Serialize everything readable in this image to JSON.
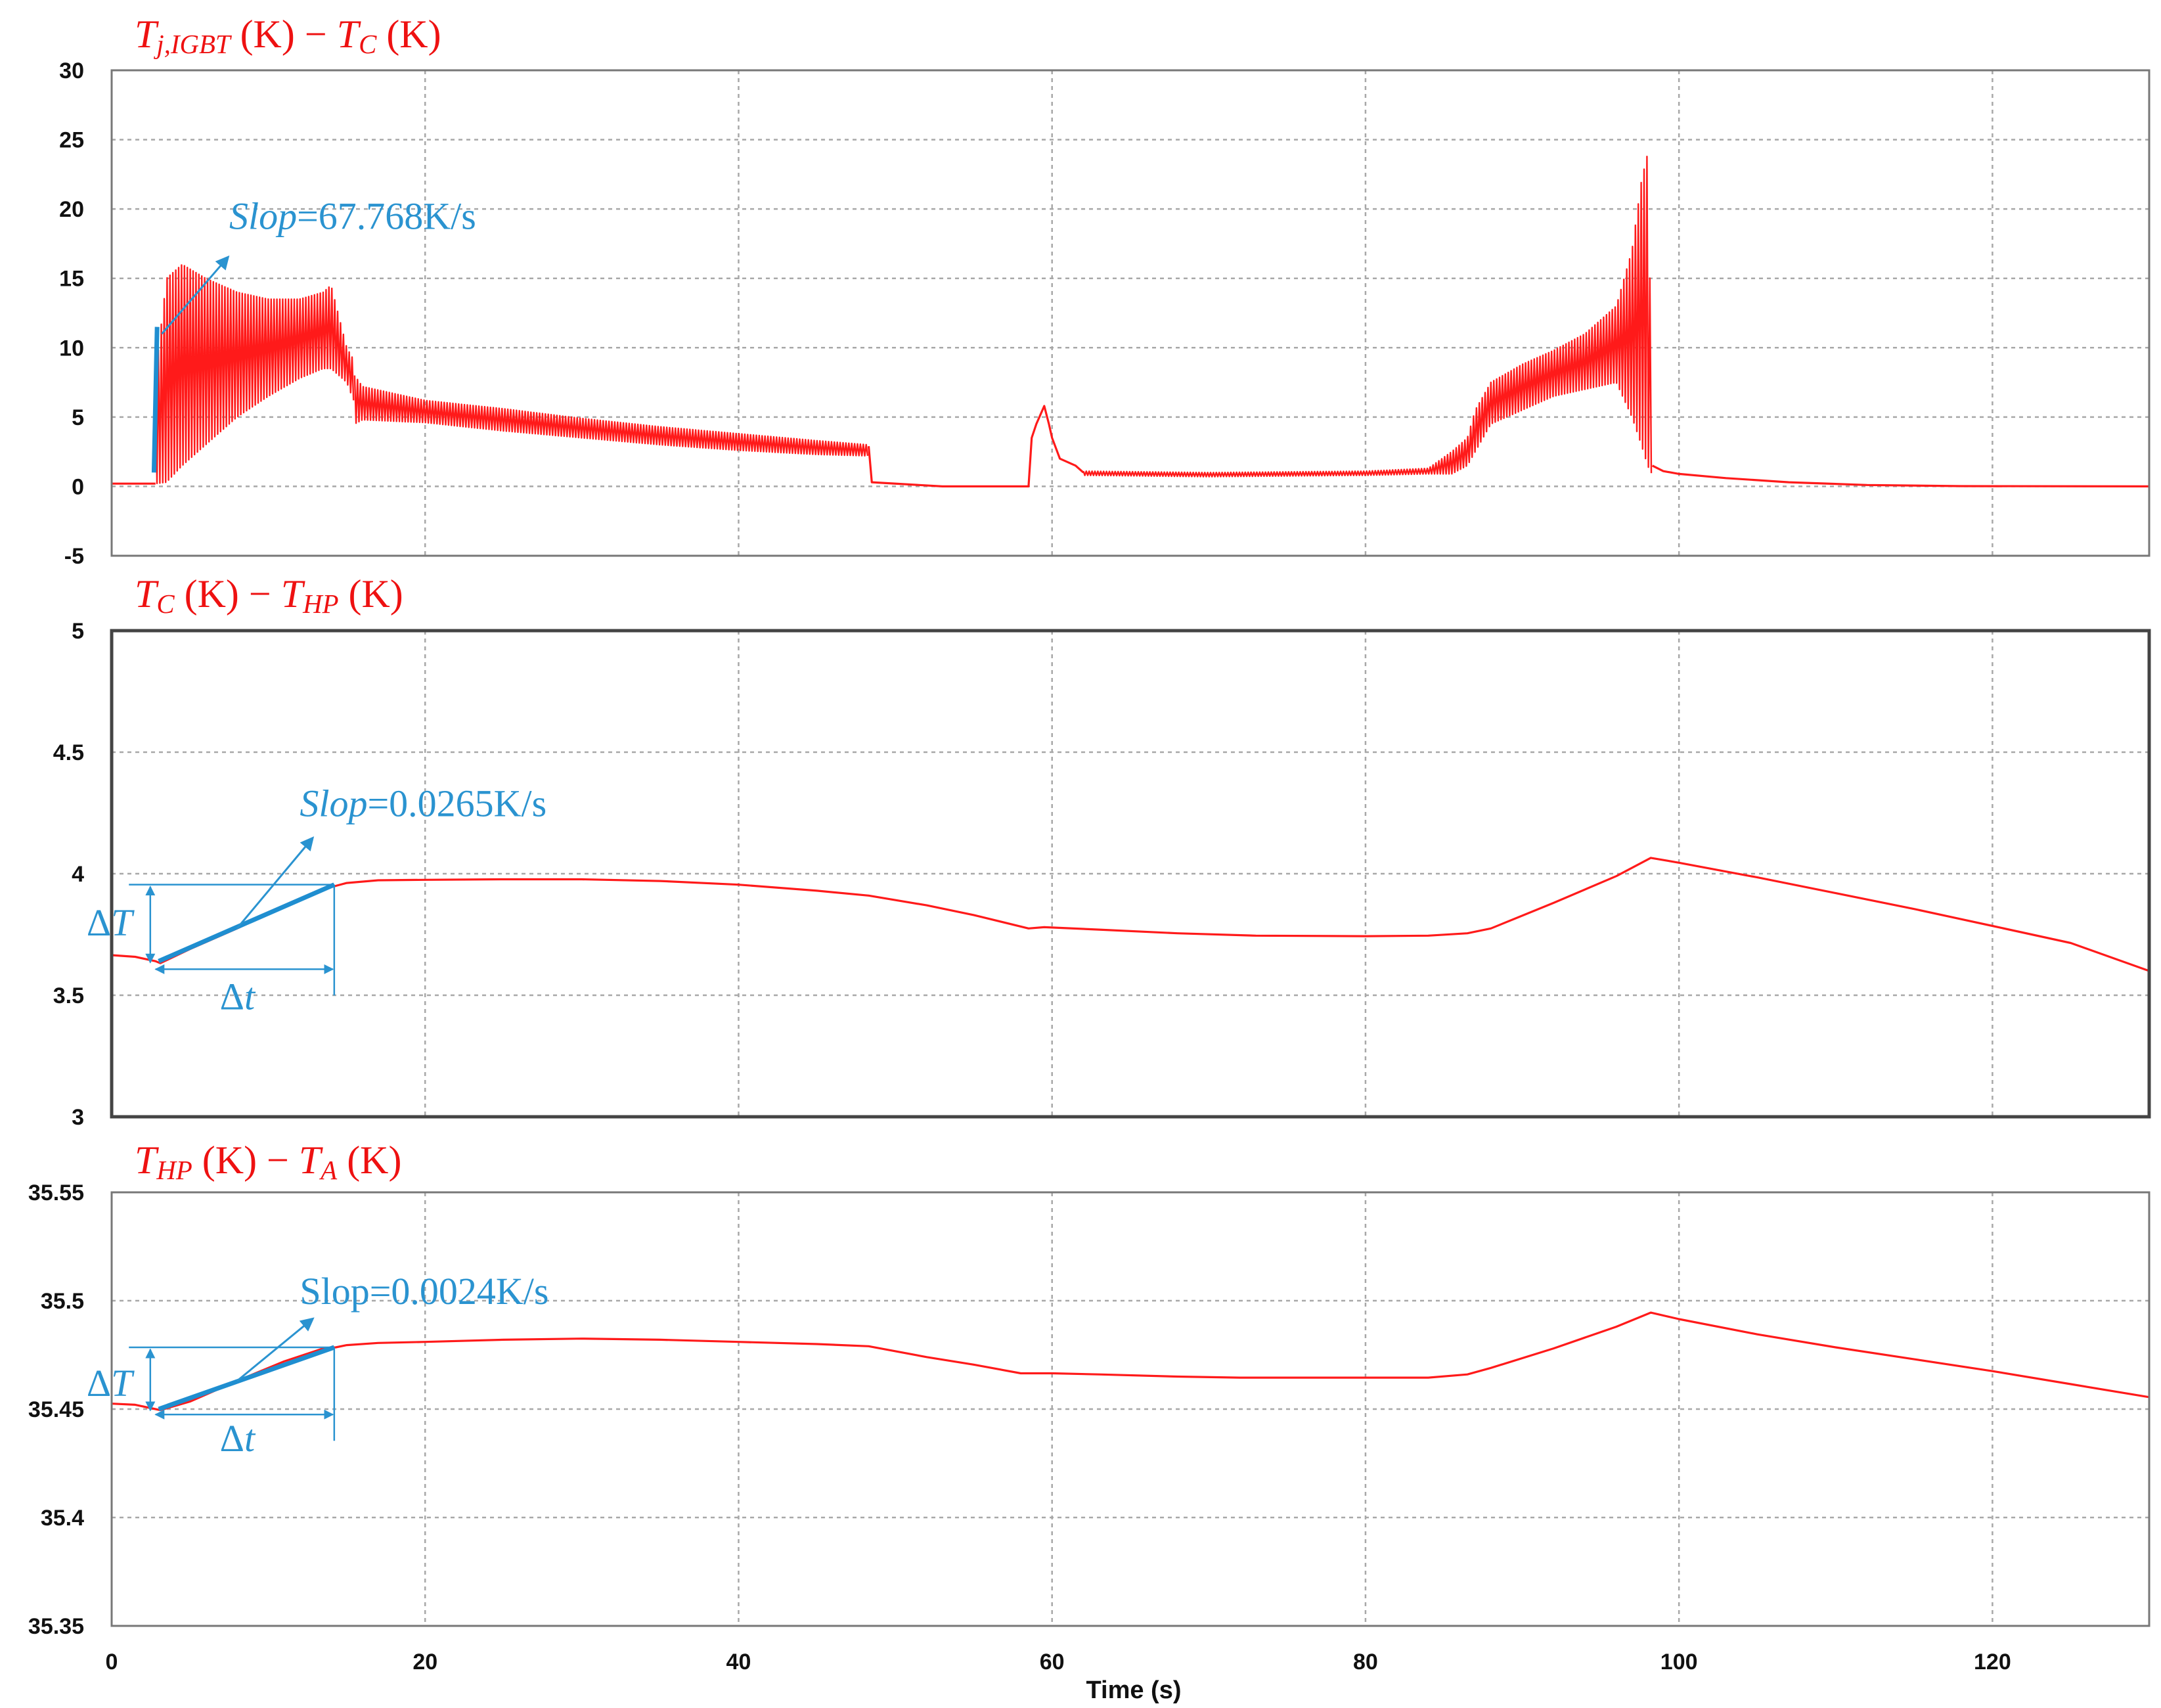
{
  "chart_data": [
    {
      "type": "line",
      "title_parts": [
        {
          "t": "T",
          "it": true
        },
        {
          "t": "j,IGBT",
          "sub": true,
          "it": true
        },
        {
          "t": " (K)  − "
        },
        {
          "t": "T",
          "it": true
        },
        {
          "t": "C",
          "sub": true,
          "it": true
        },
        {
          "t": " (K)"
        }
      ],
      "xlim": [
        0,
        130
      ],
      "ylim": [
        -5,
        30
      ],
      "yticks": [
        -5,
        0,
        5,
        10,
        15,
        20,
        25,
        30
      ],
      "ytick_labels": [
        "-5",
        "0",
        "5",
        "10",
        "15",
        "20",
        "25",
        "30"
      ],
      "frame_style": "normal",
      "series": [
        {
          "color": "#ff1a1a",
          "segments": [
            {
              "mode": "line",
              "points": [
                [
                  0,
                  0.2
                ],
                [
                  2.8,
                  0.2
                ],
                [
                  2.8,
                  0.2
                ]
              ]
            },
            {
              "mode": "band",
              "env": [
                [
                  2.8,
                  0.2,
                  8
                ],
                [
                  3.5,
                  0.3,
                  15
                ],
                [
                  4.5,
                  1.5,
                  16
                ],
                [
                  6,
                  3,
                  15
                ],
                [
                  8,
                  5,
                  14
                ],
                [
                  10,
                  6.5,
                  13.5
                ],
                [
                  12,
                  7.8,
                  13.5
                ],
                [
                  13.5,
                  8.5,
                  14
                ],
                [
                  14,
                  8.5,
                  14.5
                ],
                [
                  15,
                  7.5,
                  10
                ],
                [
                  15.5,
                  6,
                  9
                ]
              ]
            },
            {
              "mode": "band",
              "env": [
                [
                  15.5,
                  4.5,
                  8
                ],
                [
                  16,
                  4.8,
                  7.2
                ],
                [
                  20,
                  4.6,
                  6.2
                ],
                [
                  25,
                  4,
                  5.6
                ],
                [
                  30,
                  3.5,
                  4.9
                ],
                [
                  35,
                  3,
                  4.3
                ],
                [
                  40,
                  2.6,
                  3.8
                ],
                [
                  45,
                  2.3,
                  3.3
                ],
                [
                  48.3,
                  2.2,
                  3
                ]
              ]
            },
            {
              "mode": "line",
              "points": [
                [
                  48.3,
                  2.9
                ],
                [
                  48.5,
                  0.3
                ],
                [
                  53,
                  0
                ],
                [
                  58.5,
                  0
                ],
                [
                  58.7,
                  3.5
                ],
                [
                  59,
                  4.5
                ],
                [
                  59.5,
                  5.8
                ],
                [
                  59.8,
                  4.5
                ],
                [
                  60,
                  3.5
                ],
                [
                  60.5,
                  2
                ],
                [
                  61.5,
                  1.5
                ],
                [
                  62,
                  1
                ]
              ]
            },
            {
              "mode": "band",
              "env": [
                [
                  62,
                  0.8,
                  1.1
                ],
                [
                  70,
                  0.7,
                  1
                ],
                [
                  80,
                  0.8,
                  1.1
                ],
                [
                  84,
                  0.9,
                  1.3
                ],
                [
                  85.5,
                  0.9,
                  2.5
                ],
                [
                  86.5,
                  1.5,
                  3.5
                ],
                [
                  87,
                  2.5,
                  5.5
                ],
                [
                  88,
                  4.5,
                  7.5
                ],
                [
                  90,
                  5.5,
                  8.8
                ],
                [
                  92,
                  6.5,
                  9.8
                ],
                [
                  94,
                  7,
                  11
                ],
                [
                  96,
                  7.5,
                  13
                ],
                [
                  97,
                  5,
                  17
                ],
                [
                  97.6,
                  3,
                  22
                ],
                [
                  98,
                  1.5,
                  24
                ],
                [
                  98.3,
                  0.8,
                  5
                ]
              ]
            },
            {
              "mode": "line",
              "points": [
                [
                  98.3,
                  1.5
                ],
                [
                  99,
                  1.1
                ],
                [
                  100,
                  0.9
                ],
                [
                  103,
                  0.6
                ],
                [
                  107,
                  0.3
                ],
                [
                  112,
                  0.1
                ],
                [
                  118,
                  0.02
                ],
                [
                  130,
                  0
                ]
              ]
            }
          ]
        }
      ],
      "annotations": {
        "slope_label_parts": [
          {
            "t": "Slop",
            "it": true
          },
          {
            "t": "=67.768K/s"
          }
        ],
        "fit_line": [
          [
            2.7,
            1
          ],
          [
            2.9,
            11.5
          ]
        ],
        "arrow": [
          [
            3.2,
            11
          ],
          [
            7.4,
            16.5
          ]
        ],
        "label_pos": [
          7.5,
          19.5
        ]
      }
    },
    {
      "type": "line",
      "title_parts": [
        {
          "t": "T",
          "it": true
        },
        {
          "t": "C",
          "sub": true,
          "it": true
        },
        {
          "t": " (K)  − "
        },
        {
          "t": "T",
          "it": true
        },
        {
          "t": "HP",
          "sub": true,
          "it": true
        },
        {
          "t": " (K)"
        }
      ],
      "xlim": [
        0,
        130
      ],
      "ylim": [
        3,
        5
      ],
      "yticks": [
        3,
        3.5,
        4,
        4.5,
        5
      ],
      "ytick_labels": [
        "3",
        "3.5",
        "4",
        "4.5",
        "5"
      ],
      "frame_style": "bold",
      "series": [
        {
          "color": "#ff1a1a",
          "segments": [
            {
              "mode": "line",
              "points": [
                [
                  0,
                  3.665
                ],
                [
                  1.5,
                  3.658
                ],
                [
                  2.8,
                  3.64
                ],
                [
                  3.1,
                  3.632
                ],
                [
                  5,
                  3.69
                ],
                [
                  8,
                  3.775
                ],
                [
                  11,
                  3.865
                ],
                [
                  13.5,
                  3.935
                ],
                [
                  14.3,
                  3.95
                ],
                [
                  15,
                  3.962
                ],
                [
                  17,
                  3.973
                ],
                [
                  20,
                  3.975
                ],
                [
                  25,
                  3.977
                ],
                [
                  30,
                  3.977
                ],
                [
                  35,
                  3.97
                ],
                [
                  40,
                  3.955
                ],
                [
                  45,
                  3.93
                ],
                [
                  48.3,
                  3.91
                ],
                [
                  52,
                  3.87
                ],
                [
                  55,
                  3.83
                ],
                [
                  58.5,
                  3.775
                ],
                [
                  59.5,
                  3.78
                ],
                [
                  63,
                  3.77
                ],
                [
                  68,
                  3.755
                ],
                [
                  73,
                  3.745
                ],
                [
                  80,
                  3.743
                ],
                [
                  84,
                  3.745
                ],
                [
                  86.5,
                  3.755
                ],
                [
                  88,
                  3.775
                ],
                [
                  92,
                  3.88
                ],
                [
                  96,
                  3.99
                ],
                [
                  98.2,
                  4.065
                ],
                [
                  100,
                  4.045
                ],
                [
                  105,
                  3.985
                ],
                [
                  110,
                  3.92
                ],
                [
                  115,
                  3.855
                ],
                [
                  120,
                  3.785
                ],
                [
                  125,
                  3.715
                ],
                [
                  130,
                  3.6
                ]
              ]
            }
          ]
        }
      ],
      "annotations": {
        "slope_label_parts": [
          {
            "t": "Slop",
            "it": true
          },
          {
            "t": "=0.0265K/s"
          }
        ],
        "fit_line": [
          [
            3,
            3.64
          ],
          [
            14.2,
            3.955
          ]
        ],
        "arrow": [
          [
            8,
            3.775
          ],
          [
            12.8,
            4.145
          ]
        ],
        "label_pos": [
          12,
          4.29
        ],
        "deltaT": {
          "x_ref": 2.8,
          "y_lo": 3.64,
          "y_hi": 3.955,
          "h_from": 1.1,
          "h_to": 14.2,
          "label_pos": [
            -1.6,
            3.795
          ]
        },
        "deltat": {
          "y_ref": 3.64,
          "y_bracket": 3.607,
          "x_lo": 2.8,
          "x_hi": 14.2,
          "label_pos": [
            6.9,
            3.49
          ]
        },
        "deltaT_label_parts": [
          {
            "t": "Δ"
          },
          {
            "t": "T",
            "it": true
          }
        ],
        "deltat_label_parts": [
          {
            "t": "Δ"
          },
          {
            "t": "t",
            "it": true
          }
        ]
      }
    },
    {
      "type": "line",
      "title_parts": [
        {
          "t": "T",
          "it": true
        },
        {
          "t": "HP",
          "sub": true,
          "it": true
        },
        {
          "t": " (K)  − "
        },
        {
          "t": "T",
          "it": true
        },
        {
          "t": "A",
          "sub": true,
          "it": true
        },
        {
          "t": " (K)"
        }
      ],
      "xlim": [
        0,
        130
      ],
      "ylim": [
        35.35,
        35.55
      ],
      "yticks": [
        35.35,
        35.4,
        35.45,
        35.5,
        35.55
      ],
      "ytick_labels": [
        "35.35",
        "35.4",
        "35.45",
        "35.5",
        "35.55"
      ],
      "frame_style": "normal",
      "xticks": [
        0,
        20,
        40,
        60,
        80,
        100,
        120
      ],
      "xtick_labels": [
        "0",
        "20",
        "40",
        "60",
        "80",
        "100",
        "120"
      ],
      "xlabel": "Time (s)",
      "series": [
        {
          "color": "#ff1a1a",
          "segments": [
            {
              "mode": "line",
              "points": [
                [
                  0,
                  35.4525
                ],
                [
                  1.5,
                  35.452
                ],
                [
                  2.8,
                  35.45
                ],
                [
                  3.1,
                  35.4495
                ],
                [
                  5,
                  35.4535
                ],
                [
                  8,
                  35.463
                ],
                [
                  11,
                  35.472
                ],
                [
                  13.5,
                  35.478
                ],
                [
                  14.3,
                  35.4785
                ],
                [
                  15,
                  35.4795
                ],
                [
                  17,
                  35.4805
                ],
                [
                  20,
                  35.481
                ],
                [
                  25,
                  35.482
                ],
                [
                  30,
                  35.4825
                ],
                [
                  35,
                  35.482
                ],
                [
                  40,
                  35.481
                ],
                [
                  45,
                  35.48
                ],
                [
                  48.3,
                  35.479
                ],
                [
                  52,
                  35.474
                ],
                [
                  55,
                  35.4705
                ],
                [
                  58,
                  35.4665
                ],
                [
                  60,
                  35.4665
                ],
                [
                  63,
                  35.466
                ],
                [
                  68,
                  35.465
                ],
                [
                  72,
                  35.4645
                ],
                [
                  80,
                  35.4645
                ],
                [
                  84,
                  35.4645
                ],
                [
                  86.5,
                  35.466
                ],
                [
                  88,
                  35.469
                ],
                [
                  92,
                  35.478
                ],
                [
                  96,
                  35.488
                ],
                [
                  98.2,
                  35.4945
                ],
                [
                  100,
                  35.4915
                ],
                [
                  105,
                  35.4845
                ],
                [
                  110,
                  35.4785
                ],
                [
                  115,
                  35.473
                ],
                [
                  120,
                  35.4675
                ],
                [
                  125,
                  35.4615
                ],
                [
                  130,
                  35.4555
                ]
              ]
            }
          ]
        }
      ],
      "annotations": {
        "slope_label_parts": [
          {
            "t": "Slop"
          },
          {
            "t": "=0.0024K/s"
          }
        ],
        "fit_line": [
          [
            3,
            35.45
          ],
          [
            14.2,
            35.4785
          ]
        ],
        "arrow": [
          [
            8,
            35.463
          ],
          [
            12.8,
            35.4915
          ]
        ],
        "label_pos": [
          12,
          35.5045
        ],
        "deltaT": {
          "x_ref": 2.8,
          "y_lo": 35.45,
          "y_hi": 35.4785,
          "h_from": 1.1,
          "h_to": 14.2,
          "label_pos": [
            -1.6,
            35.4615
          ]
        },
        "deltat": {
          "y_ref": 35.45,
          "y_bracket": 35.4475,
          "x_lo": 2.8,
          "x_hi": 14.2,
          "label_pos": [
            6.9,
            35.436
          ]
        },
        "deltaT_label_parts": [
          {
            "t": "Δ"
          },
          {
            "t": "T",
            "it": true
          }
        ],
        "deltat_label_parts": [
          {
            "t": "Δ"
          },
          {
            "t": "t",
            "it": true
          }
        ]
      }
    }
  ]
}
